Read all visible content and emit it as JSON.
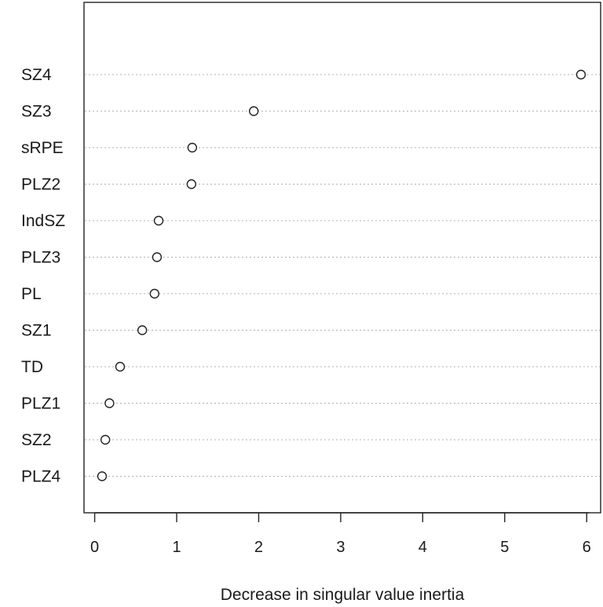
{
  "chart_data": {
    "type": "scatter",
    "title": "",
    "xlabel": "Decrease in singular value inertia",
    "ylabel": "",
    "xlim": [
      -0.13,
      6.17
    ],
    "x_ticks": [
      0,
      1,
      2,
      3,
      4,
      5,
      6
    ],
    "x_tick_labels": [
      "0",
      "1",
      "2",
      "3",
      "4",
      "5",
      "6"
    ],
    "grid": "horizontal dotted lines at each category",
    "categories": [
      "SZ4",
      "SZ3",
      "sRPE",
      "PLZ2",
      "IndSZ",
      "PLZ3",
      "PL",
      "SZ1",
      "TD",
      "PLZ1",
      "SZ2",
      "PLZ4"
    ],
    "values": [
      5.93,
      1.94,
      1.19,
      1.18,
      0.78,
      0.76,
      0.73,
      0.58,
      0.31,
      0.18,
      0.13,
      0.09
    ],
    "marker": "open-circle"
  }
}
